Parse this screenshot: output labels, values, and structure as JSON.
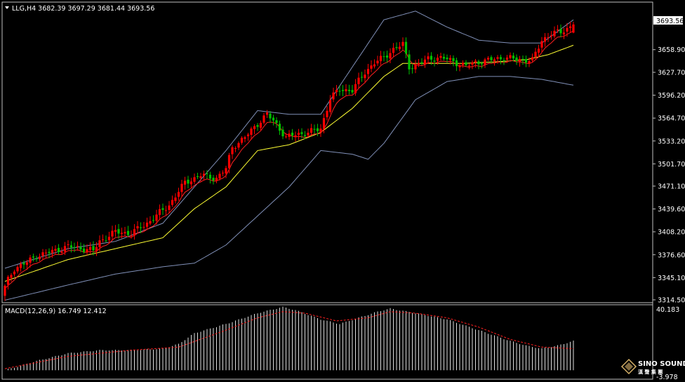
{
  "header": {
    "symbol_line": "LLG,H4  3682.39 3697.29 3681.44 3693.56"
  },
  "macd_header": "MACD(12,26,9) 16.749 12.412",
  "price_tag": "3693.56",
  "logo": {
    "name": "SINO SOUND",
    "sub": "漢 聲 集 團"
  },
  "colors": {
    "background": "#000000",
    "bull": "#00c000",
    "bear": "#ff0000",
    "bands": "#8090b8",
    "ma_fast": "#ff2020",
    "ma_slow": "#ffff33",
    "macd_hist": "#e0e0e0",
    "macd_signal": "#ff2020",
    "frame": "#c0c0c0"
  },
  "chart_data": [
    {
      "type": "candlestick",
      "title": "LLG,H4",
      "ohlc_last": {
        "open": 3682.39,
        "high": 3697.29,
        "low": 3681.44,
        "close": 3693.56
      },
      "y_ticks": [
        "3658.90",
        "3627.70",
        "3596.20",
        "3564.70",
        "3533.20",
        "3501.70",
        "3471.10",
        "3439.60",
        "3408.20",
        "3376.60",
        "3345.10",
        "3314.50"
      ],
      "ylim": [
        3314.5,
        3706.0
      ],
      "close_path": [
        [
          0,
          3334
        ],
        [
          3,
          3358
        ],
        [
          7,
          3366
        ],
        [
          10,
          3375
        ],
        [
          15,
          3381
        ],
        [
          20,
          3388
        ],
        [
          25,
          3385
        ],
        [
          28,
          3382
        ],
        [
          30,
          3395
        ],
        [
          35,
          3408
        ],
        [
          40,
          3406
        ],
        [
          45,
          3420
        ],
        [
          52,
          3445
        ],
        [
          57,
          3476
        ],
        [
          62,
          3486
        ],
        [
          67,
          3482
        ],
        [
          70,
          3495
        ],
        [
          72,
          3525
        ],
        [
          76,
          3538
        ],
        [
          80,
          3557
        ],
        [
          83,
          3570
        ],
        [
          86,
          3556
        ],
        [
          89,
          3538
        ],
        [
          92,
          3542
        ],
        [
          96,
          3545
        ],
        [
          100,
          3550
        ],
        [
          103,
          3592
        ],
        [
          106,
          3604
        ],
        [
          110,
          3603
        ],
        [
          114,
          3628
        ],
        [
          117,
          3641
        ],
        [
          120,
          3648
        ],
        [
          123,
          3660
        ],
        [
          126,
          3666
        ],
        [
          128,
          3635
        ],
        [
          131,
          3639
        ],
        [
          134,
          3646
        ],
        [
          137,
          3648
        ],
        [
          140,
          3646
        ],
        [
          143,
          3641
        ],
        [
          146,
          3636
        ],
        [
          149,
          3642
        ],
        [
          152,
          3643
        ],
        [
          155,
          3646
        ],
        [
          158,
          3648
        ],
        [
          161,
          3646
        ],
        [
          164,
          3645
        ],
        [
          167,
          3644
        ],
        [
          170,
          3672
        ],
        [
          173,
          3681
        ],
        [
          176,
          3683
        ],
        [
          180,
          3693.56
        ]
      ],
      "bands": {
        "upper": [
          [
            0,
            3358
          ],
          [
            20,
            3385
          ],
          [
            35,
            3395
          ],
          [
            50,
            3420
          ],
          [
            70,
            3520
          ],
          [
            80,
            3575
          ],
          [
            90,
            3570
          ],
          [
            100,
            3570
          ],
          [
            110,
            3635
          ],
          [
            120,
            3700
          ],
          [
            130,
            3712
          ],
          [
            140,
            3690
          ],
          [
            150,
            3672
          ],
          [
            160,
            3668
          ],
          [
            170,
            3668
          ],
          [
            180,
            3700
          ]
        ],
        "lower": [
          [
            0,
            3314
          ],
          [
            20,
            3335
          ],
          [
            35,
            3350
          ],
          [
            50,
            3360
          ],
          [
            60,
            3365
          ],
          [
            70,
            3390
          ],
          [
            80,
            3430
          ],
          [
            90,
            3470
          ],
          [
            100,
            3520
          ],
          [
            110,
            3515
          ],
          [
            115,
            3508
          ],
          [
            120,
            3530
          ],
          [
            130,
            3590
          ],
          [
            140,
            3615
          ],
          [
            150,
            3622
          ],
          [
            160,
            3622
          ],
          [
            170,
            3618
          ],
          [
            180,
            3610
          ]
        ],
        "ma_slow": [
          [
            0,
            3340
          ],
          [
            20,
            3370
          ],
          [
            35,
            3385
          ],
          [
            50,
            3400
          ],
          [
            60,
            3440
          ],
          [
            70,
            3470
          ],
          [
            80,
            3520
          ],
          [
            90,
            3528
          ],
          [
            100,
            3545
          ],
          [
            110,
            3578
          ],
          [
            120,
            3622
          ],
          [
            126,
            3640
          ],
          [
            135,
            3640
          ],
          [
            145,
            3640
          ],
          [
            155,
            3642
          ],
          [
            165,
            3645
          ],
          [
            172,
            3652
          ],
          [
            180,
            3665
          ]
        ]
      },
      "macd": {
        "header": "MACD(12,26,9) 16.749 12.412",
        "y_ticks": [
          "40.183",
          "-3.978"
        ],
        "ylim": [
          -3.978,
          40.183
        ],
        "last": {
          "macd": 16.749,
          "signal": 12.412
        },
        "hist_path": [
          [
            0,
            0
          ],
          [
            10,
            6
          ],
          [
            20,
            11
          ],
          [
            30,
            13
          ],
          [
            40,
            13
          ],
          [
            50,
            14
          ],
          [
            55,
            17
          ],
          [
            60,
            24
          ],
          [
            70,
            30
          ],
          [
            80,
            37
          ],
          [
            88,
            41
          ],
          [
            92,
            39
          ],
          [
            100,
            33
          ],
          [
            106,
            30
          ],
          [
            112,
            34
          ],
          [
            118,
            38
          ],
          [
            122,
            40
          ],
          [
            130,
            37
          ],
          [
            140,
            33
          ],
          [
            150,
            26
          ],
          [
            160,
            19
          ],
          [
            165,
            16
          ],
          [
            170,
            14
          ],
          [
            175,
            16
          ],
          [
            180,
            19
          ]
        ],
        "signal_path": [
          [
            0,
            1
          ],
          [
            20,
            9
          ],
          [
            40,
            13
          ],
          [
            55,
            15
          ],
          [
            70,
            26
          ],
          [
            80,
            34
          ],
          [
            88,
            38
          ],
          [
            95,
            37
          ],
          [
            105,
            32
          ],
          [
            115,
            34
          ],
          [
            122,
            38
          ],
          [
            130,
            37
          ],
          [
            140,
            34
          ],
          [
            150,
            28
          ],
          [
            160,
            20
          ],
          [
            170,
            15
          ],
          [
            180,
            14
          ]
        ]
      }
    }
  ]
}
